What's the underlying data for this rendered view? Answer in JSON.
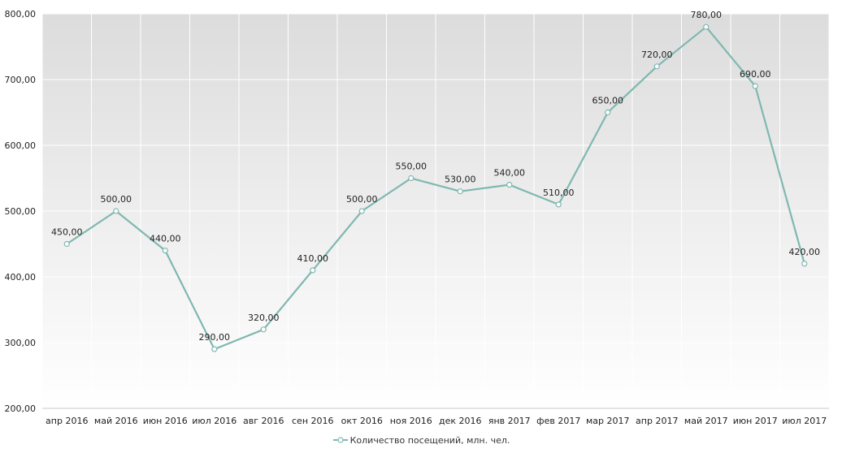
{
  "chart_data": {
    "type": "line",
    "categories": [
      "апр 2016",
      "май 2016",
      "июн 2016",
      "июл 2016",
      "авг 2016",
      "сен 2016",
      "окт 2016",
      "ноя 2016",
      "дек 2016",
      "янв 2017",
      "фев 2017",
      "мар 2017",
      "апр 2017",
      "май 2017",
      "июн 2017",
      "июл 2017"
    ],
    "series": [
      {
        "name": "Количество посещений, млн. чел.",
        "values": [
          450,
          500,
          440,
          290,
          320,
          410,
          500,
          550,
          530,
          540,
          510,
          650,
          720,
          780,
          690,
          420
        ],
        "labels": [
          "450,00",
          "500,00",
          "440,00",
          "290,00",
          "320,00",
          "410,00",
          "500,00",
          "550,00",
          "530,00",
          "540,00",
          "510,00",
          "650,00",
          "720,00",
          "780,00",
          "690,00",
          "420,00"
        ],
        "color": "#7fb8b0"
      }
    ],
    "ylim": [
      200,
      800
    ],
    "yticks": [
      200,
      300,
      400,
      500,
      600,
      700,
      800
    ],
    "ytick_labels": [
      "200,00",
      "300,00",
      "400,00",
      "500,00",
      "600,00",
      "700,00",
      "800,00"
    ],
    "grid": true,
    "legend_position": "bottom-center",
    "background_gradient": [
      "#dcdcdc",
      "#ffffff"
    ]
  }
}
